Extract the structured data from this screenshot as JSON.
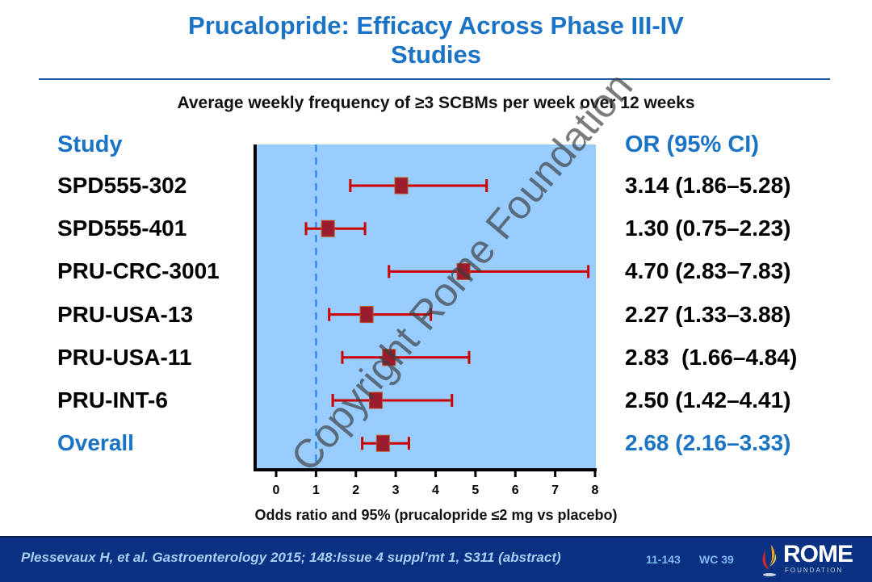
{
  "slide": {
    "title_line1": "Prucalopride: Efficacy Across Phase III-IV",
    "title_line2": "Studies",
    "subtitle": "Average weekly frequency of ≥3 SCBMs per week over 12 weeks",
    "watermark": "Copyright Rome Foundation",
    "colors": {
      "title_blue": "#1a73c4",
      "plot_background": "#99ccff",
      "marker_fill": "#9b1c2c",
      "marker_border": "#c0541c",
      "whisker": "#cc0000",
      "reference_line": "#1f7ae0",
      "footer_background": "#0b3282"
    }
  },
  "table": {
    "study_header": "Study",
    "or_header": "OR (95% CI)"
  },
  "chart_data": {
    "type": "forest",
    "title": "Average weekly frequency of ≥3 SCBMs per week over 12 weeks",
    "xlabel": "Odds ratio and 95% (prucalopride ≤2 mg vs placebo)",
    "ylabel": "",
    "xlim": [
      0,
      8
    ],
    "xticks": [
      "0",
      "1",
      "2",
      "3",
      "4",
      "5",
      "6",
      "7",
      "8"
    ],
    "reference_line": 1,
    "grid": false,
    "studies": [
      {
        "name": "SPD555-302",
        "or": 3.14,
        "lower": 1.86,
        "upper": 5.28,
        "label": "3.14 (1.86–5.28)",
        "overall": false
      },
      {
        "name": "SPD555-401",
        "or": 1.3,
        "lower": 0.75,
        "upper": 2.23,
        "label": "1.30 (0.75–2.23)",
        "overall": false
      },
      {
        "name": "PRU-CRC-3001",
        "or": 4.7,
        "lower": 2.83,
        "upper": 7.83,
        "label": "4.70 (2.83–7.83)",
        "overall": false
      },
      {
        "name": "PRU-USA-13",
        "or": 2.27,
        "lower": 1.33,
        "upper": 3.88,
        "label": "2.27 (1.33–3.88)",
        "overall": false
      },
      {
        "name": "PRU-USA-11",
        "or": 2.83,
        "lower": 1.66,
        "upper": 4.84,
        "label": "2.83  (1.66–4.84)",
        "overall": false
      },
      {
        "name": "PRU-INT-6",
        "or": 2.5,
        "lower": 1.42,
        "upper": 4.41,
        "label": "2.50 (1.42–4.41)",
        "overall": false
      },
      {
        "name": "Overall",
        "or": 2.68,
        "lower": 2.16,
        "upper": 3.33,
        "label": "2.68 (2.16–3.33)",
        "overall": true
      }
    ]
  },
  "footer": {
    "citation": "Plessevaux H, et al. Gastroenterology 2015; 148:Issue 4 suppl’mt 1, S311 (abstract)",
    "slide_number": "11-143",
    "code": "WC 39",
    "logo_word": "ROME",
    "logo_sub": "FOUNDATION",
    "logo_icon": "flame-icon"
  }
}
